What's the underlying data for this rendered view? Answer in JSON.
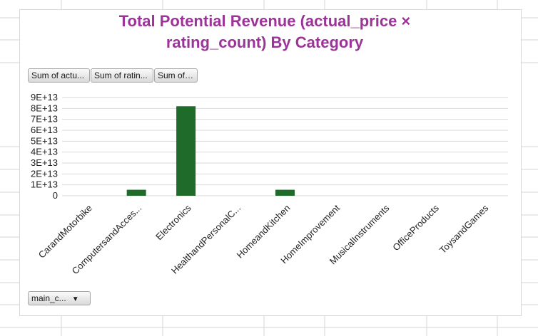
{
  "colors": {
    "title": "#9b3398",
    "bar": "#1e6b2a",
    "gridline": "#d9d9d9",
    "sheet_grid": "#d4d4d4"
  },
  "field_buttons": {
    "values": [
      "Sum of actu...",
      "Sum of ratin...",
      "Sum of ..."
    ],
    "axis_field": "main_c...",
    "axis_field_icon": "dropdown-arrow-icon"
  },
  "chart_data": {
    "type": "bar",
    "title": "Total Potential Revenue (actual_price × rating_count) By Category",
    "title_lines": [
      "Total Potential Revenue (actual_price ×",
      "rating_count) By Category"
    ],
    "categories": [
      "CarandMotorbike",
      "ComputersandAcces...",
      "Electronics",
      "HealthandPersonalC...",
      "HomeandKitchen",
      "HomeImprovement",
      "MusicalInstruments",
      "OfficeProducts",
      "ToysandGames"
    ],
    "values": [
      0,
      5500000000000,
      82000000000000,
      0,
      5500000000000,
      0,
      0,
      0,
      0
    ],
    "ylim": [
      0,
      90000000000000
    ],
    "yticks": [
      0,
      10000000000000,
      20000000000000,
      30000000000000,
      40000000000000,
      50000000000000,
      60000000000000,
      70000000000000,
      80000000000000,
      90000000000000
    ],
    "ytick_labels": [
      "0",
      "1E+13",
      "2E+13",
      "3E+13",
      "4E+13",
      "5E+13",
      "6E+13",
      "7E+13",
      "8E+13",
      "9E+13"
    ],
    "xlabel": "",
    "ylabel": "",
    "grid": true,
    "legend": "none"
  }
}
